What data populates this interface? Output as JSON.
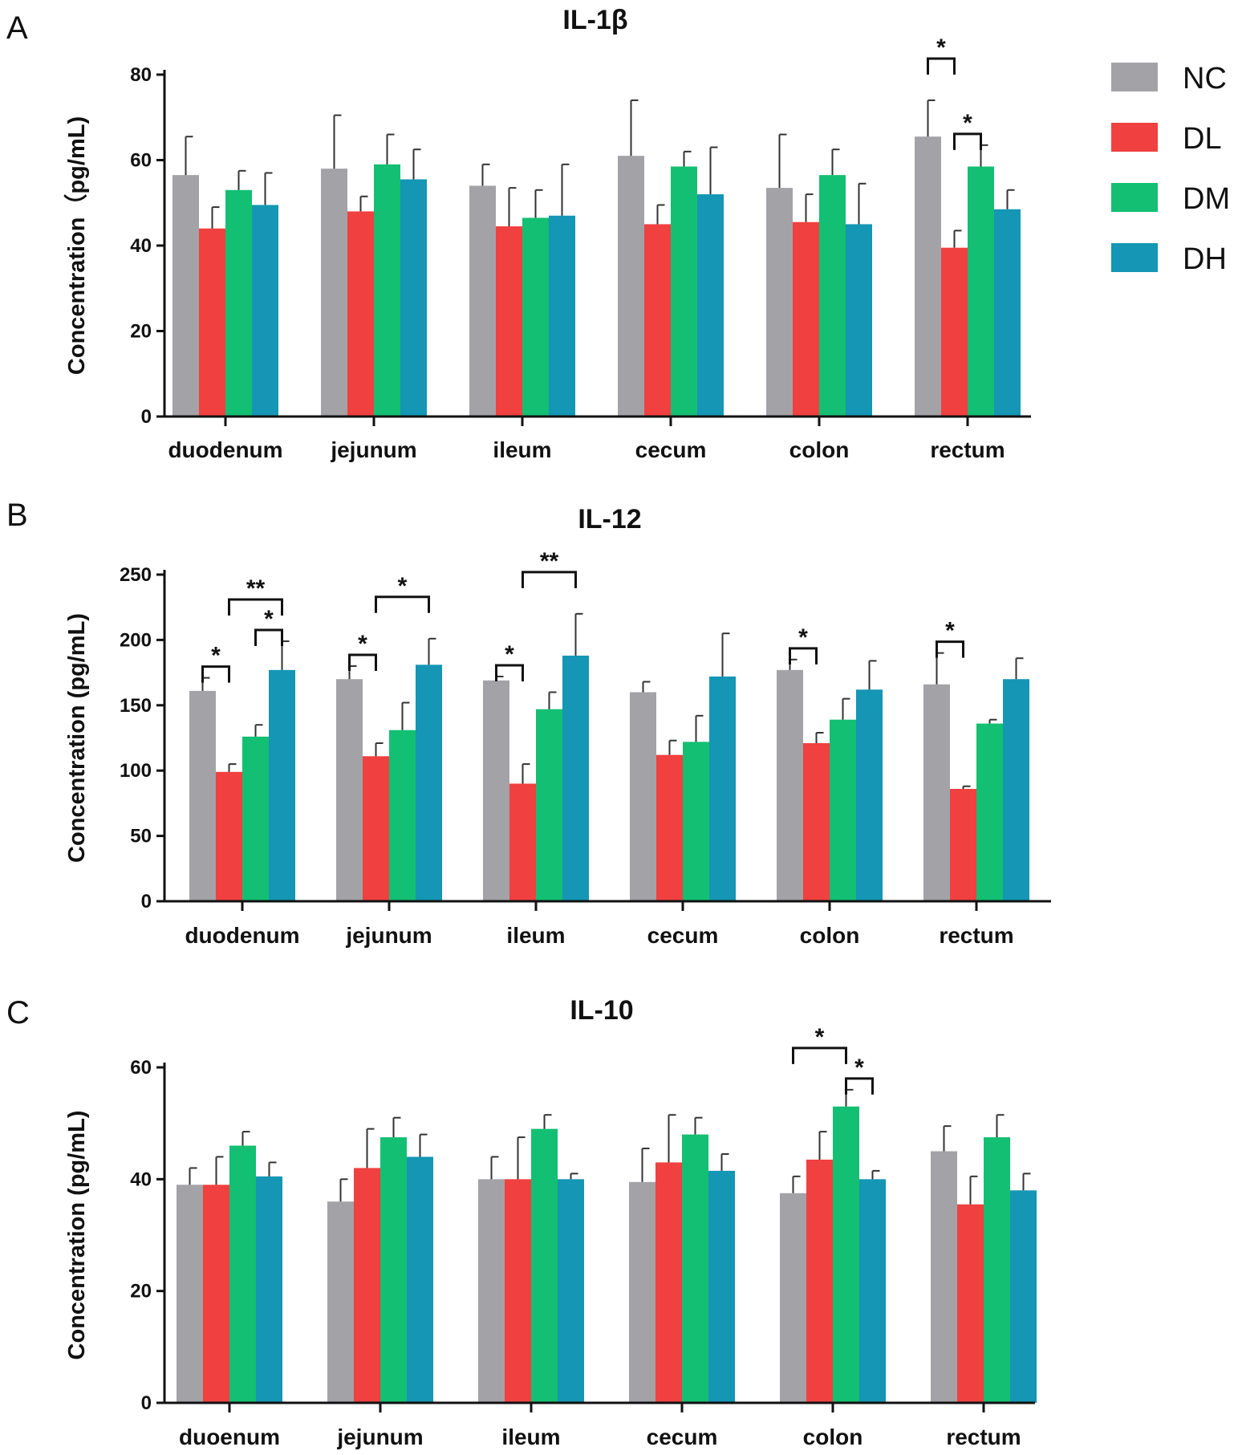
{
  "colors": {
    "NC": "#a3a2a7",
    "DL": "#f04040",
    "DM": "#13bf72",
    "DH": "#1496b4"
  },
  "legend": {
    "items": [
      {
        "key": "NC",
        "label": "NC"
      },
      {
        "key": "DL",
        "label": "DL"
      },
      {
        "key": "DM",
        "label": "DM"
      },
      {
        "key": "DH",
        "label": "DH"
      }
    ]
  },
  "chart_data": [
    {
      "panel": "A",
      "type": "bar",
      "title": "IL-1β",
      "ylabel": "Concentration（pg/mL)",
      "xlabel": "",
      "ylim": [
        0,
        80
      ],
      "yticks": [
        0,
        20,
        40,
        60,
        80
      ],
      "categories": [
        "duodenum",
        "jejunum",
        "ileum",
        "cecum",
        "colon",
        "rectum"
      ],
      "series": [
        {
          "name": "NC",
          "values": [
            56.5,
            58,
            54,
            61,
            53.5,
            65.5
          ],
          "errors": [
            9,
            12.5,
            5,
            13,
            12.5,
            8.5
          ]
        },
        {
          "name": "DL",
          "values": [
            44,
            48,
            44.5,
            45,
            45.5,
            39.5
          ],
          "errors": [
            5,
            3.5,
            9,
            4.5,
            6.5,
            4
          ]
        },
        {
          "name": "DM",
          "values": [
            53,
            59,
            46.5,
            58.5,
            56.5,
            58.5
          ],
          "errors": [
            4.5,
            7,
            6.5,
            3.5,
            6,
            5
          ]
        },
        {
          "name": "DH",
          "values": [
            49.5,
            55.5,
            47,
            52,
            45,
            48.5
          ],
          "errors": [
            7.5,
            7,
            12,
            11,
            9.5,
            4.5
          ]
        }
      ],
      "significance": [
        {
          "category": "rectum",
          "from": "NC",
          "to": "DL",
          "label": "*",
          "level": 1
        },
        {
          "category": "rectum",
          "from": "DL",
          "to": "DM",
          "label": "*",
          "level": 0
        }
      ]
    },
    {
      "panel": "B",
      "type": "bar",
      "title": "IL-12",
      "ylabel": "Concentration (pg/mL)",
      "xlabel": "",
      "ylim": [
        0,
        250
      ],
      "yticks": [
        0,
        50,
        100,
        150,
        200,
        250
      ],
      "categories": [
        "duodenum",
        "jejunum",
        "ileum",
        "cecum",
        "colon",
        "rectum"
      ],
      "series": [
        {
          "name": "NC",
          "values": [
            161,
            170,
            169,
            160,
            177,
            166
          ],
          "errors": [
            10,
            10,
            3,
            8,
            8,
            24
          ]
        },
        {
          "name": "DL",
          "values": [
            99,
            111,
            90,
            112,
            121,
            86
          ],
          "errors": [
            6,
            10,
            15,
            11,
            8,
            2
          ]
        },
        {
          "name": "DM",
          "values": [
            126,
            131,
            147,
            122,
            139,
            136
          ],
          "errors": [
            9,
            21,
            13,
            20,
            16,
            3
          ]
        },
        {
          "name": "DH",
          "values": [
            177,
            181,
            188,
            172,
            162,
            170
          ],
          "errors": [
            22,
            20,
            32,
            33,
            22,
            16
          ]
        }
      ],
      "significance": [
        {
          "category": "duodenum",
          "from": "NC",
          "to": "DL",
          "label": "*",
          "level": 0
        },
        {
          "category": "duodenum",
          "from": "DM",
          "to": "DH",
          "label": "*",
          "level": 0
        },
        {
          "category": "duodenum",
          "from": "DL",
          "to": "DH",
          "label": "**",
          "level": 1
        },
        {
          "category": "jejunum",
          "from": "NC",
          "to": "DL",
          "label": "*",
          "level": 0
        },
        {
          "category": "jejunum",
          "from": "DL",
          "to": "DH",
          "label": "*",
          "level": 1
        },
        {
          "category": "ileum",
          "from": "NC",
          "to": "DL",
          "label": "*",
          "level": 0
        },
        {
          "category": "ileum",
          "from": "DL",
          "to": "DH",
          "label": "**",
          "level": 1
        },
        {
          "category": "colon",
          "from": "NC",
          "to": "DL",
          "label": "*",
          "level": 0
        },
        {
          "category": "rectum",
          "from": "NC",
          "to": "DL",
          "label": "*",
          "level": 0
        }
      ]
    },
    {
      "panel": "C",
      "type": "bar",
      "title": "IL-10",
      "ylabel": "Concentration (pg/mL)",
      "xlabel": "",
      "ylim": [
        0,
        60
      ],
      "yticks": [
        0,
        20,
        40,
        60
      ],
      "categories": [
        "duoenum",
        "jejunum",
        "ileum",
        "cecum",
        "colon",
        "rectum"
      ],
      "series": [
        {
          "name": "NC",
          "values": [
            39,
            36,
            40,
            39.5,
            37.5,
            45
          ],
          "errors": [
            3,
            4,
            4,
            6,
            3,
            4.5
          ]
        },
        {
          "name": "DL",
          "values": [
            39,
            42,
            40,
            43,
            43.5,
            35.5
          ],
          "errors": [
            5,
            7,
            7.5,
            8.5,
            5,
            5
          ]
        },
        {
          "name": "DM",
          "values": [
            46,
            47.5,
            49,
            48,
            53,
            47.5
          ],
          "errors": [
            2.5,
            3.5,
            2.5,
            3,
            3,
            4
          ]
        },
        {
          "name": "DH",
          "values": [
            40.5,
            44,
            40,
            41.5,
            40,
            38
          ],
          "errors": [
            2.5,
            4,
            1,
            3,
            1.5,
            3
          ]
        }
      ],
      "significance": [
        {
          "category": "colon",
          "from": "DM",
          "to": "DH",
          "label": "*",
          "level": 0
        },
        {
          "category": "colon",
          "from": "NC",
          "to": "DM",
          "label": "*",
          "level": 1
        }
      ]
    }
  ]
}
